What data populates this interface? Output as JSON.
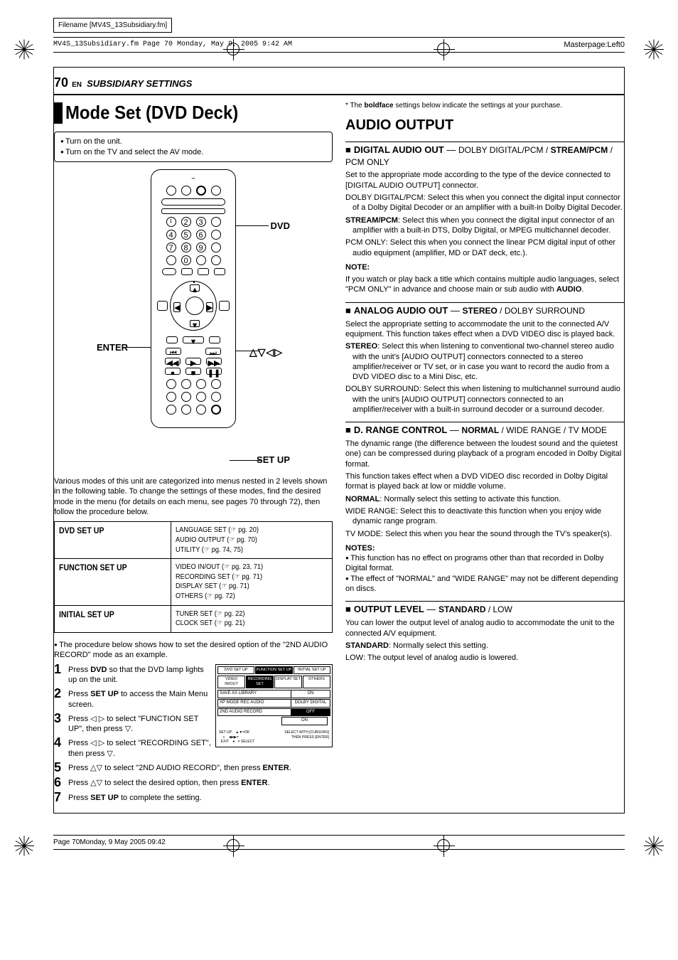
{
  "meta": {
    "filename_label": "Filename [MV4S_13Subsidiary.fm]",
    "framemaker_line": "MV4S_13Subsidiary.fm  Page 70  Monday, May 9, 2005  9:42 AM",
    "masterpage": "Masterpage:Left0",
    "footer": "Page 70Monday, 9 May 2005 09:42"
  },
  "header": {
    "page_num": "70",
    "lang": "EN",
    "section": "SUBSIDIARY SETTINGS"
  },
  "left": {
    "title": "Mode Set (DVD Deck)",
    "prep": [
      "Turn on the unit.",
      "Turn on the TV and select the AV mode."
    ],
    "callouts": {
      "dvd": "DVD",
      "enter": "ENTER",
      "arrows": "△▽◁▷",
      "setup": "SET UP"
    },
    "intro": "Various modes of this unit are categorized into menus nested in 2 levels shown in the following table. To change the settings of these modes, find the desired mode in the menu (for details on each menu, see pages 70 through 72), then follow the procedure below.",
    "table": [
      {
        "h": "DVD SET UP",
        "v": "LANGUAGE SET (☞ pg. 20)\nAUDIO OUTPUT (☞ pg. 70)\nUTILITY (☞ pg. 74, 75)"
      },
      {
        "h": "FUNCTION SET UP",
        "v": "VIDEO IN/OUT (☞ pg. 23, 71)\nRECORDING SET (☞ pg. 71)\nDISPLAY SET (☞ pg. 71)\nOTHERS (☞ pg. 72)"
      },
      {
        "h": "INITIAL SET UP",
        "v": "TUNER SET (☞ pg. 22)\nCLOCK SET (☞ pg. 21)"
      }
    ],
    "proc_note": "The procedure below shows how to set the desired option of the \"2ND AUDIO RECORD\" mode as an example.",
    "steps": [
      "Press <b>DVD</b> so that the DVD lamp lights up on the unit.",
      "Press <b>SET UP</b> to access the Main Menu screen.",
      "Press ◁ ▷ to select \"FUNCTION SET UP\", then press ▽.",
      "Press ◁ ▷ to select \"RECORDING SET\", then press ▽.",
      "Press △▽ to select \"2ND AUDIO RECORD\", then press <b>ENTER</b>.",
      "Press △▽ to select the desired option, then press <b>ENTER</b>.",
      "Press <b>SET UP</b> to complete the setting."
    ],
    "osd": {
      "tabs": [
        "DVD SET UP",
        "FUNCTION SET UP",
        "INITIAL SET UP"
      ],
      "subtabs": [
        "VIDEO IN/OUT",
        "RECORDING SET",
        "DISPLAY SET",
        "OTHERS"
      ],
      "rows": [
        {
          "l": "SAVE AS LIBRARY",
          "v": "ON"
        },
        {
          "l": "XP MODE REC AUDIO",
          "v": "DOLBY DIGITAL"
        },
        {
          "l": "2ND AUDIO RECORD",
          "v": "OFF",
          "v2": "ON"
        }
      ],
      "footer_l": "SET UP    ▲▼=OK\n    +    ◀●▶=\n  EXIT    ●   = SELECT",
      "footer_r": "SELECT WITH [CURSORS]\nTHEN PRESS [ENTER]"
    }
  },
  "right": {
    "asterisk": "*  The <b>boldface</b> settings below indicate the settings at your purchase.",
    "section_title": "AUDIO OUTPUT",
    "settings": [
      {
        "name": "DIGITAL AUDIO OUT",
        "opts": "DOLBY DIGITAL/PCM / <b>STREAM/PCM</b> / PCM ONLY",
        "lead": "Set to the appropriate mode according to the type of the device connected to [DIGITAL AUDIO OUTPUT] connector.",
        "items": [
          {
            "t": "DOLBY DIGITAL/PCM",
            "b": false,
            "d": ": Select this when you connect the digital input connector of a Dolby Digital Decoder or an amplifier with a built-in Dolby Digital Decoder."
          },
          {
            "t": "STREAM/PCM",
            "b": true,
            "d": ": Select this when you connect the digital input connector of an amplifier with a built-in DTS, Dolby Digital, or MPEG multichannel decoder."
          },
          {
            "t": "PCM ONLY",
            "b": false,
            "d": ": Select this when you connect the linear PCM digital input of other audio equipment (amplifier, MD or DAT deck, etc.)."
          }
        ],
        "note_hdr": "NOTE:",
        "note": "If you watch or play back a title which contains multiple audio languages, select \"PCM ONLY\" in advance and choose main or sub audio with <b>AUDIO</b>."
      },
      {
        "name": "ANALOG AUDIO OUT",
        "opts": "<b>STEREO</b> / DOLBY SURROUND",
        "lead": "Select the appropriate setting to accommodate the unit to the connected A/V equipment. This function takes effect when a DVD VIDEO disc is played back.",
        "items": [
          {
            "t": "STEREO",
            "b": true,
            "d": ": Select this when listening to conventional two-channel stereo audio with the unit's [AUDIO OUTPUT] connectors connected to a stereo amplifier/receiver or TV set, or in case you want to record the audio from a DVD VIDEO disc to a Mini Disc, etc."
          },
          {
            "t": "DOLBY SURROUND",
            "b": false,
            "d": ": Select this when listening to multichannel surround audio with the unit's [AUDIO OUTPUT] connectors connected to an amplifier/receiver with a built-in surround decoder or a surround decoder."
          }
        ]
      },
      {
        "name": "D. RANGE CONTROL",
        "opts": "<b>NORMAL</b> / WIDE RANGE / TV MODE",
        "lead": "The dynamic range (the difference between the loudest sound and the quietest one) can be compressed during playback of a program encoded in Dolby Digital format.",
        "lead2": "This function takes effect when a DVD VIDEO disc recorded in Dolby Digital format is played back at low or middle volume.",
        "items": [
          {
            "t": "NORMAL",
            "b": true,
            "d": ": Normally select this setting to activate this function."
          },
          {
            "t": "WIDE RANGE",
            "b": false,
            "d": ": Select this to deactivate this function when you enjoy wide dynamic range program."
          },
          {
            "t": "TV MODE",
            "b": false,
            "d": ": Select this when you hear the sound through the TV's speaker(s)."
          }
        ],
        "note_hdr": "NOTES:",
        "notes_list": [
          "This function has no effect on programs other than that recorded in Dolby Digital format.",
          "The effect of \"NORMAL\" and \"WIDE RANGE\" may not be different depending on discs."
        ]
      },
      {
        "name": "OUTPUT LEVEL",
        "opts": "<b>STANDARD</b> / LOW",
        "lead": "You can lower the output level of analog audio to accommodate the unit to the connected A/V equipment.",
        "items": [
          {
            "t": "STANDARD",
            "b": true,
            "d": ": Normally select this setting."
          },
          {
            "t": "LOW",
            "b": false,
            "d": ": The output level of analog audio is lowered."
          }
        ]
      }
    ]
  }
}
